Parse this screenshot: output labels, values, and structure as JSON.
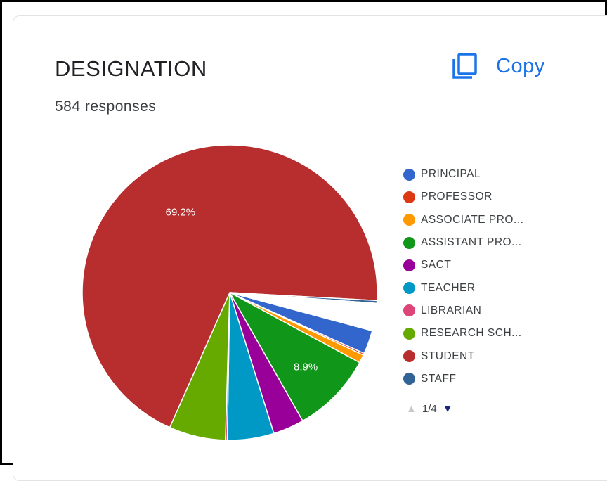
{
  "card": {
    "title": "DESIGNATION",
    "responses": "584 responses",
    "copy_label": "Copy",
    "copy_icon": "copy-icon"
  },
  "chart_data": {
    "type": "pie",
    "total_responses": 584,
    "slices": [
      {
        "label": "PRINCIPAL",
        "percent": 2.6,
        "color": "#3366cc"
      },
      {
        "label": "PROFESSOR",
        "percent": 0.2,
        "color": "#dc3912"
      },
      {
        "label": "ASSOCIATE PRO...",
        "percent": 0.9,
        "color": "#ff9900"
      },
      {
        "label": "ASSISTANT PRO...",
        "percent": 8.9,
        "color": "#109618"
      },
      {
        "label": "SACT",
        "percent": 3.4,
        "color": "#990099"
      },
      {
        "label": "TEACHER",
        "percent": 5.1,
        "color": "#0099c6"
      },
      {
        "label": "LIBRARIAN",
        "percent": 0.2,
        "color": "#dd4477"
      },
      {
        "label": "RESEARCH SCH...",
        "percent": 6.2,
        "color": "#66aa00"
      },
      {
        "label": "STUDENT",
        "percent": 69.2,
        "color": "#b82e2e"
      },
      {
        "label": "STAFF",
        "percent": 0.3,
        "color": "#316395"
      }
    ],
    "remaining_percent": 3.0,
    "remaining_color": "#ffffff",
    "data_labels": [
      {
        "slice": "STUDENT",
        "text": "69.2%"
      },
      {
        "slice": "ASSISTANT PRO...",
        "text": "8.9%"
      }
    ],
    "legend_position": "right",
    "legend_page": "1/4"
  }
}
